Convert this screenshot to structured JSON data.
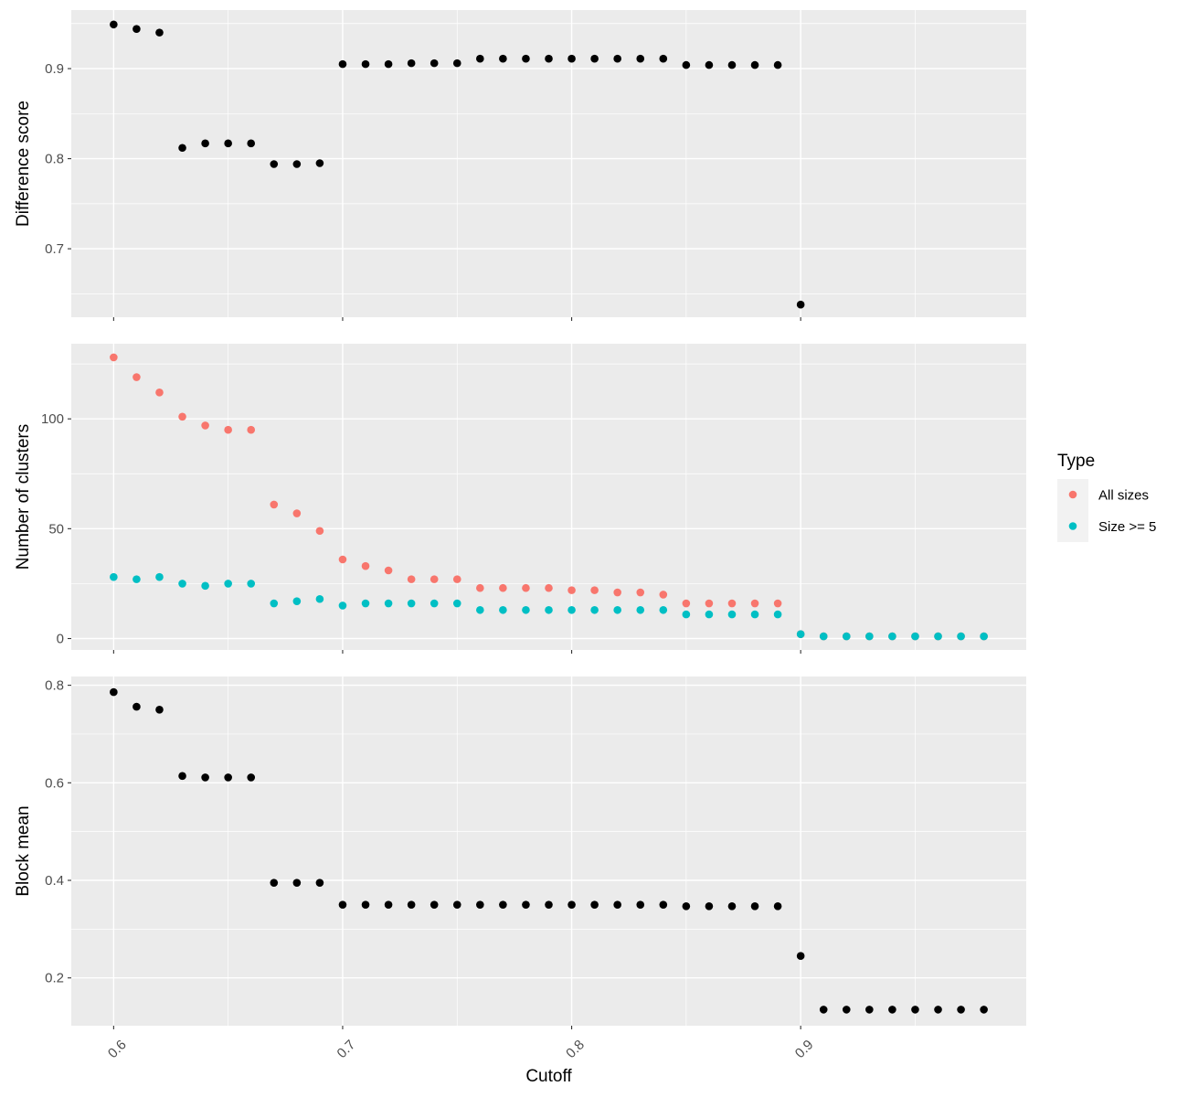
{
  "colors": {
    "panel_bg": "#EBEBEB",
    "grid_major": "#FFFFFF",
    "point_black": "#000000",
    "all_sizes": "#F8766D",
    "size_ge_5": "#00BFC4",
    "tick_label": "#4D4D4D",
    "tick_mark": "#333333"
  },
  "x_axis": {
    "title": "Cutoff",
    "ticks": [
      0.6,
      0.7,
      0.8,
      0.9
    ],
    "tick_labels": [
      "0.6",
      "0.7",
      "0.8",
      "0.9"
    ],
    "range": [
      0.5815,
      0.9985
    ]
  },
  "legend": {
    "title": "Type",
    "placement": "right",
    "entries": [
      {
        "label": "All sizes",
        "color": "#F8766D"
      },
      {
        "label": "Size >= 5",
        "color": "#00BFC4"
      }
    ]
  },
  "chart_data": [
    {
      "type": "scatter",
      "xlabel": "Cutoff",
      "ylabel": "Difference score",
      "ylim": [
        0.624,
        0.965
      ],
      "yticks": [
        0.7,
        0.8,
        0.9
      ],
      "ytick_labels": [
        "0.7",
        "0.8",
        "0.9"
      ],
      "grid": true,
      "series": [
        {
          "color": "#000000",
          "x": [
            0.6,
            0.61,
            0.62,
            0.63,
            0.64,
            0.65,
            0.66,
            0.67,
            0.68,
            0.69,
            0.7,
            0.71,
            0.72,
            0.73,
            0.74,
            0.75,
            0.76,
            0.77,
            0.78,
            0.79,
            0.8,
            0.81,
            0.82,
            0.83,
            0.84,
            0.85,
            0.86,
            0.87,
            0.88,
            0.89,
            0.9
          ],
          "y": [
            0.949,
            0.944,
            0.94,
            0.812,
            0.817,
            0.817,
            0.817,
            0.794,
            0.794,
            0.795,
            0.905,
            0.905,
            0.905,
            0.906,
            0.906,
            0.906,
            0.911,
            0.911,
            0.911,
            0.911,
            0.911,
            0.911,
            0.911,
            0.911,
            0.911,
            0.904,
            0.904,
            0.904,
            0.904,
            0.904,
            0.638
          ]
        }
      ]
    },
    {
      "type": "scatter",
      "xlabel": "Cutoff",
      "ylabel": "Number of clusters",
      "ylim": [
        -5.2,
        134.2
      ],
      "yticks": [
        0,
        50,
        100
      ],
      "ytick_labels": [
        "0",
        "50",
        "100"
      ],
      "grid": true,
      "series": [
        {
          "name": "All sizes",
          "color": "#F8766D",
          "x": [
            0.6,
            0.61,
            0.62,
            0.63,
            0.64,
            0.65,
            0.66,
            0.67,
            0.68,
            0.69,
            0.7,
            0.71,
            0.72,
            0.73,
            0.74,
            0.75,
            0.76,
            0.77,
            0.78,
            0.79,
            0.8,
            0.81,
            0.82,
            0.83,
            0.84,
            0.85,
            0.86,
            0.87,
            0.88,
            0.89,
            0.9,
            0.91,
            0.92,
            0.93,
            0.94,
            0.95,
            0.96,
            0.97,
            0.98
          ],
          "y": [
            128,
            119,
            112,
            101,
            97,
            95,
            95,
            61,
            57,
            49,
            36,
            33,
            31,
            27,
            27,
            27,
            23,
            23,
            23,
            23,
            22,
            22,
            21,
            21,
            20,
            16,
            16,
            16,
            16,
            16,
            2,
            1,
            1,
            1,
            1,
            1,
            1,
            1,
            1
          ]
        },
        {
          "name": "Size >= 5",
          "color": "#00BFC4",
          "x": [
            0.6,
            0.61,
            0.62,
            0.63,
            0.64,
            0.65,
            0.66,
            0.67,
            0.68,
            0.69,
            0.7,
            0.71,
            0.72,
            0.73,
            0.74,
            0.75,
            0.76,
            0.77,
            0.78,
            0.79,
            0.8,
            0.81,
            0.82,
            0.83,
            0.84,
            0.85,
            0.86,
            0.87,
            0.88,
            0.89,
            0.9,
            0.91,
            0.92,
            0.93,
            0.94,
            0.95,
            0.96,
            0.97,
            0.98
          ],
          "y": [
            28,
            27,
            28,
            25,
            24,
            25,
            25,
            16,
            17,
            18,
            15,
            16,
            16,
            16,
            16,
            16,
            13,
            13,
            13,
            13,
            13,
            13,
            13,
            13,
            13,
            11,
            11,
            11,
            11,
            11,
            2,
            1,
            1,
            1,
            1,
            1,
            1,
            1,
            1
          ]
        }
      ]
    },
    {
      "type": "scatter",
      "xlabel": "Cutoff",
      "ylabel": "Block mean",
      "ylim": [
        0.102,
        0.818
      ],
      "yticks": [
        0.2,
        0.4,
        0.6,
        0.8
      ],
      "ytick_labels": [
        "0.2",
        "0.4",
        "0.6",
        "0.8"
      ],
      "grid": true,
      "series": [
        {
          "color": "#000000",
          "x": [
            0.6,
            0.61,
            0.62,
            0.63,
            0.64,
            0.65,
            0.66,
            0.67,
            0.68,
            0.69,
            0.7,
            0.71,
            0.72,
            0.73,
            0.74,
            0.75,
            0.76,
            0.77,
            0.78,
            0.79,
            0.8,
            0.81,
            0.82,
            0.83,
            0.84,
            0.85,
            0.86,
            0.87,
            0.88,
            0.89,
            0.9,
            0.91,
            0.92,
            0.93,
            0.94,
            0.95,
            0.96,
            0.97,
            0.98
          ],
          "y": [
            0.786,
            0.756,
            0.75,
            0.614,
            0.611,
            0.611,
            0.611,
            0.395,
            0.395,
            0.395,
            0.35,
            0.35,
            0.35,
            0.35,
            0.35,
            0.35,
            0.35,
            0.35,
            0.35,
            0.35,
            0.35,
            0.35,
            0.35,
            0.35,
            0.35,
            0.347,
            0.347,
            0.347,
            0.347,
            0.347,
            0.245,
            0.135,
            0.135,
            0.135,
            0.135,
            0.135,
            0.135,
            0.135,
            0.135
          ]
        }
      ]
    }
  ]
}
